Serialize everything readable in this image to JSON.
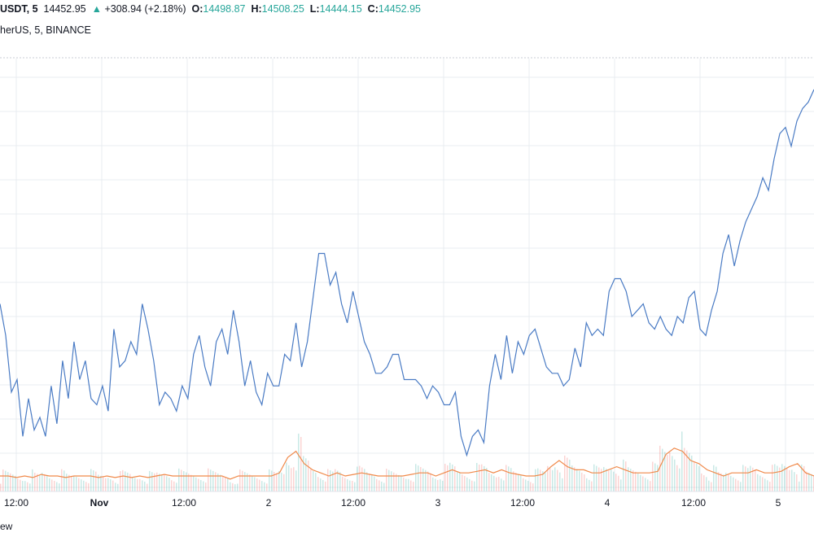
{
  "header": {
    "symbol": "USDT, 5",
    "last_price": "14452.95",
    "change_arrow": "▲",
    "change": "+308.94 (+2.18%)",
    "o_label": "O:",
    "o_value": "14498.87",
    "h_label": "H:",
    "h_value": "14508.25",
    "l_label": "L:",
    "l_value": "14444.15",
    "c_label": "C:",
    "c_value": "14452.95"
  },
  "subheader": {
    "text": "herUS, 5, BINANCE"
  },
  "footer": {
    "text": "ew"
  },
  "colors": {
    "line": "#4a7bc4",
    "grid": "#e8ecf0",
    "volume_ma": "#f08a4b",
    "vol_up": "#26a69a",
    "vol_down": "#ef5350",
    "positive": "#26a69a"
  },
  "chart_data": {
    "type": "line",
    "title": "",
    "xlabel": "",
    "ylabel": "",
    "x_ticks": [
      "12:00",
      "Nov",
      "12:00",
      "2",
      "12:00",
      "3",
      "12:00",
      "4",
      "12:00",
      "5"
    ],
    "grid": true,
    "series": [
      {
        "values": [
          0.66,
          0.61,
          0.52,
          0.54,
          0.45,
          0.51,
          0.46,
          0.48,
          0.45,
          0.53,
          0.47,
          0.57,
          0.51,
          0.6,
          0.54,
          0.57,
          0.51,
          0.5,
          0.53,
          0.49,
          0.62,
          0.56,
          0.57,
          0.6,
          0.58,
          0.66,
          0.62,
          0.57,
          0.5,
          0.52,
          0.51,
          0.49,
          0.53,
          0.51,
          0.58,
          0.61,
          0.56,
          0.53,
          0.6,
          0.62,
          0.58,
          0.65,
          0.6,
          0.53,
          0.57,
          0.52,
          0.5,
          0.55,
          0.53,
          0.53,
          0.58,
          0.57,
          0.63,
          0.56,
          0.6,
          0.67,
          0.74,
          0.74,
          0.69,
          0.71,
          0.66,
          0.63,
          0.68,
          0.64,
          0.6,
          0.58,
          0.55,
          0.55,
          0.56,
          0.58,
          0.58,
          0.54,
          0.54,
          0.54,
          0.53,
          0.51,
          0.53,
          0.52,
          0.5,
          0.5,
          0.52,
          0.45,
          0.42,
          0.45,
          0.46,
          0.44,
          0.53,
          0.58,
          0.54,
          0.61,
          0.55,
          0.6,
          0.58,
          0.61,
          0.62,
          0.59,
          0.56,
          0.55,
          0.55,
          0.53,
          0.54,
          0.59,
          0.56,
          0.63,
          0.61,
          0.62,
          0.61,
          0.68,
          0.7,
          0.7,
          0.68,
          0.64,
          0.65,
          0.66,
          0.63,
          0.62,
          0.64,
          0.62,
          0.61,
          0.64,
          0.63,
          0.67,
          0.68,
          0.62,
          0.61,
          0.65,
          0.68,
          0.74,
          0.77,
          0.72,
          0.76,
          0.79,
          0.81,
          0.83,
          0.86,
          0.84,
          0.89,
          0.93,
          0.94,
          0.91,
          0.95,
          0.97,
          0.98,
          1.0
        ],
        "y_min": 0.4,
        "y_max": 1.0
      }
    ],
    "volume_ma": [
      0.05,
      0.05,
      0.045,
      0.05,
      0.045,
      0.055,
      0.05,
      0.05,
      0.045,
      0.05,
      0.05,
      0.05,
      0.045,
      0.05,
      0.045,
      0.05,
      0.045,
      0.05,
      0.045,
      0.05,
      0.055,
      0.05,
      0.05,
      0.05,
      0.05,
      0.05,
      0.05,
      0.05,
      0.04,
      0.05,
      0.05,
      0.05,
      0.05,
      0.05,
      0.06,
      0.11,
      0.13,
      0.09,
      0.07,
      0.06,
      0.05,
      0.06,
      0.05,
      0.055,
      0.06,
      0.055,
      0.05,
      0.05,
      0.05,
      0.05,
      0.055,
      0.06,
      0.06,
      0.05,
      0.06,
      0.07,
      0.06,
      0.06,
      0.065,
      0.07,
      0.06,
      0.07,
      0.06,
      0.055,
      0.05,
      0.05,
      0.055,
      0.08,
      0.1,
      0.08,
      0.07,
      0.07,
      0.06,
      0.06,
      0.07,
      0.08,
      0.07,
      0.06,
      0.06,
      0.06,
      0.065,
      0.12,
      0.14,
      0.13,
      0.1,
      0.09,
      0.07,
      0.06,
      0.05,
      0.06,
      0.06,
      0.06,
      0.07,
      0.06,
      0.06,
      0.065,
      0.08,
      0.09,
      0.06,
      0.05
    ]
  }
}
